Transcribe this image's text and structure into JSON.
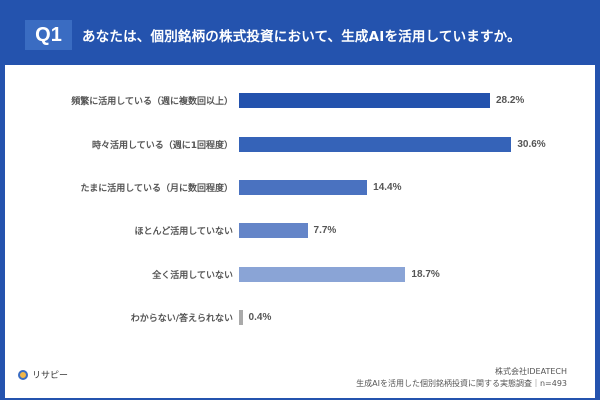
{
  "header": {
    "badge": "Q1",
    "question": "あなたは、個別銘柄の株式投資において、生成AIを活用していますか。"
  },
  "colors": {
    "background": "#2453ae",
    "badge": "#3a6cc2",
    "panel": "#ffffff",
    "bars": [
      "#2352ad",
      "#3563b8",
      "#4a72c0",
      "#6485c8",
      "#8aa4d6",
      "#aaaaaa"
    ]
  },
  "chart_data": {
    "type": "bar",
    "orientation": "horizontal",
    "title": "あなたは、個別銘柄の株式投資において、生成AIを活用していますか。",
    "categories": [
      "頻繁に活用している（週に複数回以上）",
      "時々活用している（週に1回程度）",
      "たまに活用している（月に数回程度）",
      "ほとんど活用していない",
      "全く活用していない",
      "わからない/答えられない"
    ],
    "values": [
      28.2,
      30.6,
      14.4,
      7.7,
      18.7,
      0.4
    ],
    "value_labels": [
      "28.2%",
      "30.6%",
      "14.4%",
      "7.7%",
      "18.7%",
      "0.4%"
    ],
    "unit": "%",
    "xlabel": "",
    "ylabel": "",
    "grid": false,
    "legend": null
  },
  "footer": {
    "logo_text": "リサピー",
    "company": "株式会社IDEATECH",
    "survey": "生成AIを活用した個別銘柄投資に関する実態調査｜n=493"
  }
}
